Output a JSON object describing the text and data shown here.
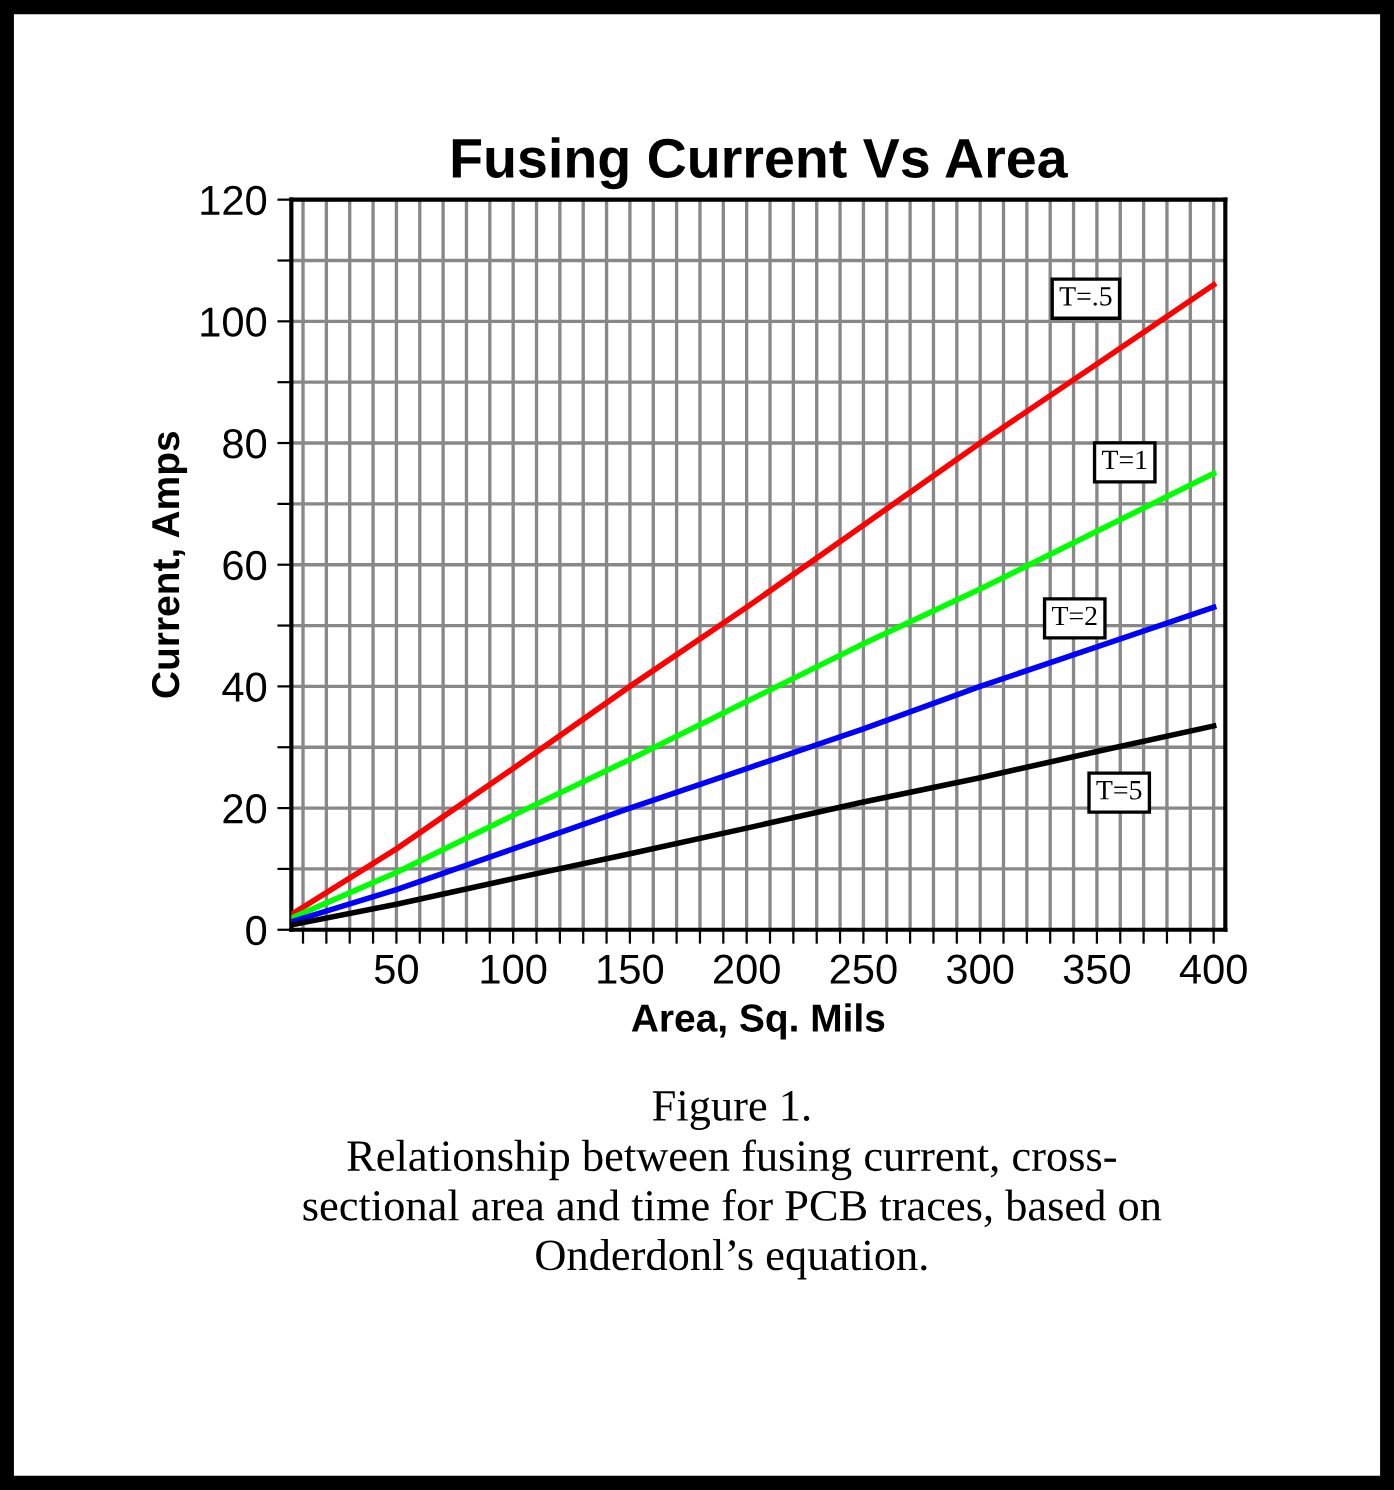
{
  "chart_data": {
    "type": "line",
    "title": "Fusing Current Vs Area",
    "xlabel": "Area, Sq. Mils",
    "ylabel": "Current, Amps",
    "x": [
      5,
      50,
      100,
      150,
      200,
      250,
      300,
      350,
      400
    ],
    "series": [
      {
        "name": "T=.5",
        "color": "#ff0000",
        "values": [
          2.5,
          13.3,
          26.5,
          40,
          53,
          66.5,
          80,
          93,
          106
        ]
      },
      {
        "name": "T=1",
        "color": "#00ff00",
        "values": [
          1.9,
          9.4,
          18.8,
          28,
          37.5,
          47,
          56,
          65.5,
          75
        ]
      },
      {
        "name": "T=2",
        "color": "#0000ff",
        "values": [
          1.3,
          6.6,
          13.3,
          20,
          26.5,
          33,
          40,
          46.5,
          53
        ]
      },
      {
        "name": "T=5",
        "color": "#000000",
        "values": [
          0.8,
          4.2,
          8.4,
          12.5,
          16.7,
          21,
          25,
          29.3,
          33.5
        ]
      }
    ],
    "xlim": [
      5,
      405
    ],
    "xticks": [
      {
        "value": 10,
        "label": null
      },
      {
        "value": 20,
        "label": null
      },
      {
        "value": 30,
        "label": null
      },
      {
        "value": 40,
        "label": null
      },
      50,
      {
        "value": 60,
        "label": null
      },
      {
        "value": 70,
        "label": null
      },
      {
        "value": 80,
        "label": null
      },
      {
        "value": 90,
        "label": null
      },
      100,
      {
        "value": 110,
        "label": null
      },
      {
        "value": 120,
        "label": null
      },
      {
        "value": 130,
        "label": null
      },
      {
        "value": 140,
        "label": null
      },
      150,
      {
        "value": 160,
        "label": null
      },
      {
        "value": 170,
        "label": null
      },
      {
        "value": 180,
        "label": null
      },
      {
        "value": 190,
        "label": null
      },
      200,
      {
        "value": 210,
        "label": null
      },
      {
        "value": 220,
        "label": null
      },
      {
        "value": 230,
        "label": null
      },
      {
        "value": 240,
        "label": null
      },
      250,
      {
        "value": 260,
        "label": null
      },
      {
        "value": 270,
        "label": null
      },
      {
        "value": 280,
        "label": null
      },
      {
        "value": 290,
        "label": null
      },
      300,
      {
        "value": 310,
        "label": null
      },
      {
        "value": 320,
        "label": null
      },
      {
        "value": 330,
        "label": null
      },
      {
        "value": 340,
        "label": null
      },
      350,
      {
        "value": 360,
        "label": null
      },
      {
        "value": 370,
        "label": null
      },
      {
        "value": 380,
        "label": null
      },
      {
        "value": 390,
        "label": null
      },
      400
    ],
    "ylim": [
      0,
      120
    ],
    "yticks": [
      0,
      {
        "value": 10,
        "label": null
      },
      20,
      {
        "value": 30,
        "label": null
      },
      40,
      {
        "value": 50,
        "label": null
      },
      60,
      {
        "value": 70,
        "label": null
      },
      80,
      {
        "value": 90,
        "label": null
      },
      100,
      {
        "value": 110,
        "label": null
      },
      120
    ],
    "grid": true,
    "legend": false,
    "marker": "none",
    "line_style": "solid",
    "annotations": [
      "Figure 1.\nRelationship between fusing current, cross-\nsectional area and time for PCB traces, based on\nOnderdonl’s equation."
    ]
  }
}
